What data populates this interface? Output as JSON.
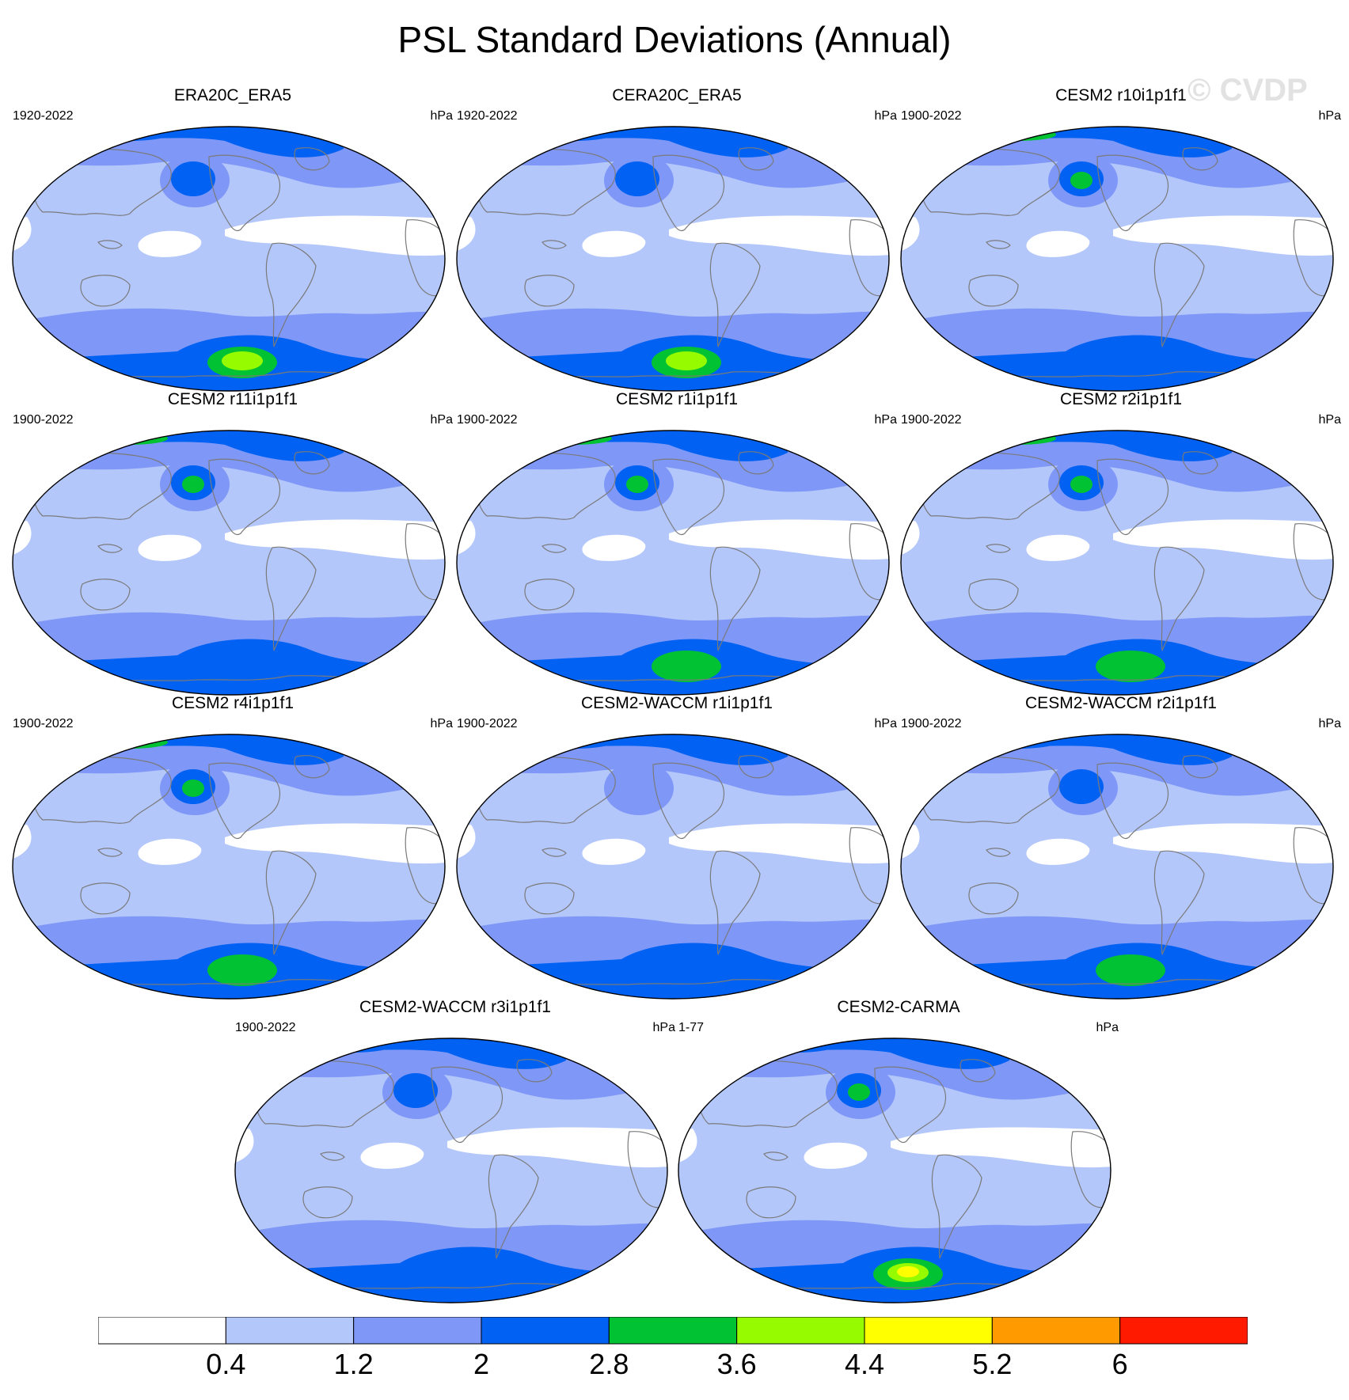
{
  "title": "PSL Standard Deviations (Annual)",
  "watermark": "© CVDP",
  "units": "hPa",
  "panels": [
    {
      "name": "ERA20C_ERA5",
      "period": "1920-2022",
      "south_max": 4.4,
      "aleut": 2.8,
      "north_high": 2.8
    },
    {
      "name": "CERA20C_ERA5",
      "period": "1920-2022",
      "south_max": 4.4,
      "aleut": 2.8,
      "north_high": 2.8
    },
    {
      "name": "CESM2 r10i1p1f1",
      "period": "1900-2022",
      "south_max": 2.8,
      "aleut": 3.6,
      "north_high": 3.6
    },
    {
      "name": "CESM2 r11i1p1f1",
      "period": "1900-2022",
      "south_max": 2.8,
      "aleut": 3.6,
      "north_high": 3.6
    },
    {
      "name": "CESM2 r1i1p1f1",
      "period": "1900-2022",
      "south_max": 3.6,
      "aleut": 3.6,
      "north_high": 3.6
    },
    {
      "name": "CESM2 r2i1p1f1",
      "period": "1900-2022",
      "south_max": 3.6,
      "aleut": 3.6,
      "north_high": 3.6
    },
    {
      "name": "CESM2 r4i1p1f1",
      "period": "1900-2022",
      "south_max": 3.6,
      "aleut": 3.6,
      "north_high": 3.6
    },
    {
      "name": "CESM2-WACCM r1i1p1f1",
      "period": "1900-2022",
      "south_max": 2.8,
      "aleut": 2.0,
      "north_high": 2.8
    },
    {
      "name": "CESM2-WACCM r2i1p1f1",
      "period": "1900-2022",
      "south_max": 3.6,
      "aleut": 2.8,
      "north_high": 2.8
    },
    {
      "name": "CESM2-WACCM r3i1p1f1",
      "period": "1900-2022",
      "south_max": 2.8,
      "aleut": 2.8,
      "north_high": 2.8
    },
    {
      "name": "CESM2-CARMA",
      "period": "1-77",
      "south_max": 5.2,
      "aleut": 3.6,
      "north_high": 2.8
    }
  ],
  "colorbar": {
    "labels": [
      "0.4",
      "1.2",
      "2",
      "2.8",
      "3.6",
      "4.4",
      "5.2",
      "6"
    ],
    "levels": [
      0.4,
      1.2,
      2,
      2.8,
      3.6,
      4.4,
      5.2,
      6
    ],
    "colors": [
      "#ffffff",
      "#b4c7fb",
      "#7f97f7",
      "#0061f2",
      "#00c233",
      "#97fb00",
      "#ffff00",
      "#ff9b00",
      "#ff1a00"
    ]
  },
  "land_line_color": "#7a7a7a"
}
